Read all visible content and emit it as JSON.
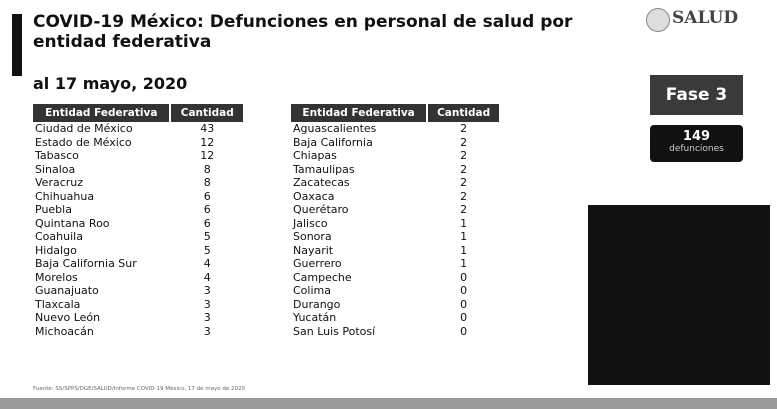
{
  "header": {
    "title": "COVID-19 México: Defunciones en personal de salud por entidad federativa",
    "date": "al 17 mayo, 2020"
  },
  "tables": [
    {
      "columns": [
        "Entidad Federativa",
        "Cantidad"
      ],
      "rows": [
        [
          "Ciudad de México",
          43
        ],
        [
          "Estado de México",
          12
        ],
        [
          "Tabasco",
          12
        ],
        [
          "Sinaloa",
          8
        ],
        [
          "Veracruz",
          8
        ],
        [
          "Chihuahua",
          6
        ],
        [
          "Puebla",
          6
        ],
        [
          "Quintana Roo",
          6
        ],
        [
          "Coahuila",
          5
        ],
        [
          "Hidalgo",
          5
        ],
        [
          "Baja California Sur",
          4
        ],
        [
          "Morelos",
          4
        ],
        [
          "Guanajuato",
          3
        ],
        [
          "Tlaxcala",
          3
        ],
        [
          "Nuevo León",
          3
        ],
        [
          "Michoacán",
          3
        ]
      ]
    },
    {
      "columns": [
        "Entidad Federativa",
        "Cantidad"
      ],
      "rows": [
        [
          "Aguascalientes",
          2
        ],
        [
          "Baja California",
          2
        ],
        [
          "Chiapas",
          2
        ],
        [
          "Tamaulipas",
          2
        ],
        [
          "Zacatecas",
          2
        ],
        [
          "Oaxaca",
          2
        ],
        [
          "Querétaro",
          2
        ],
        [
          "Jalisco",
          1
        ],
        [
          "Sonora",
          1
        ],
        [
          "Nayarit",
          1
        ],
        [
          "Guerrero",
          1
        ],
        [
          "Campeche",
          0
        ],
        [
          "Colima",
          0
        ],
        [
          "Durango",
          0
        ],
        [
          "Yucatán",
          0
        ],
        [
          "San Luis Potosí",
          0
        ]
      ]
    }
  ],
  "logo": "SALUD",
  "phase": "Fase 3",
  "deaths": {
    "value": 149,
    "label": "defunciones"
  },
  "source": "Fuente: SS/SPPS/DGE/SALUD/Informe COVID-19 México, 17 de mayo de 2020"
}
